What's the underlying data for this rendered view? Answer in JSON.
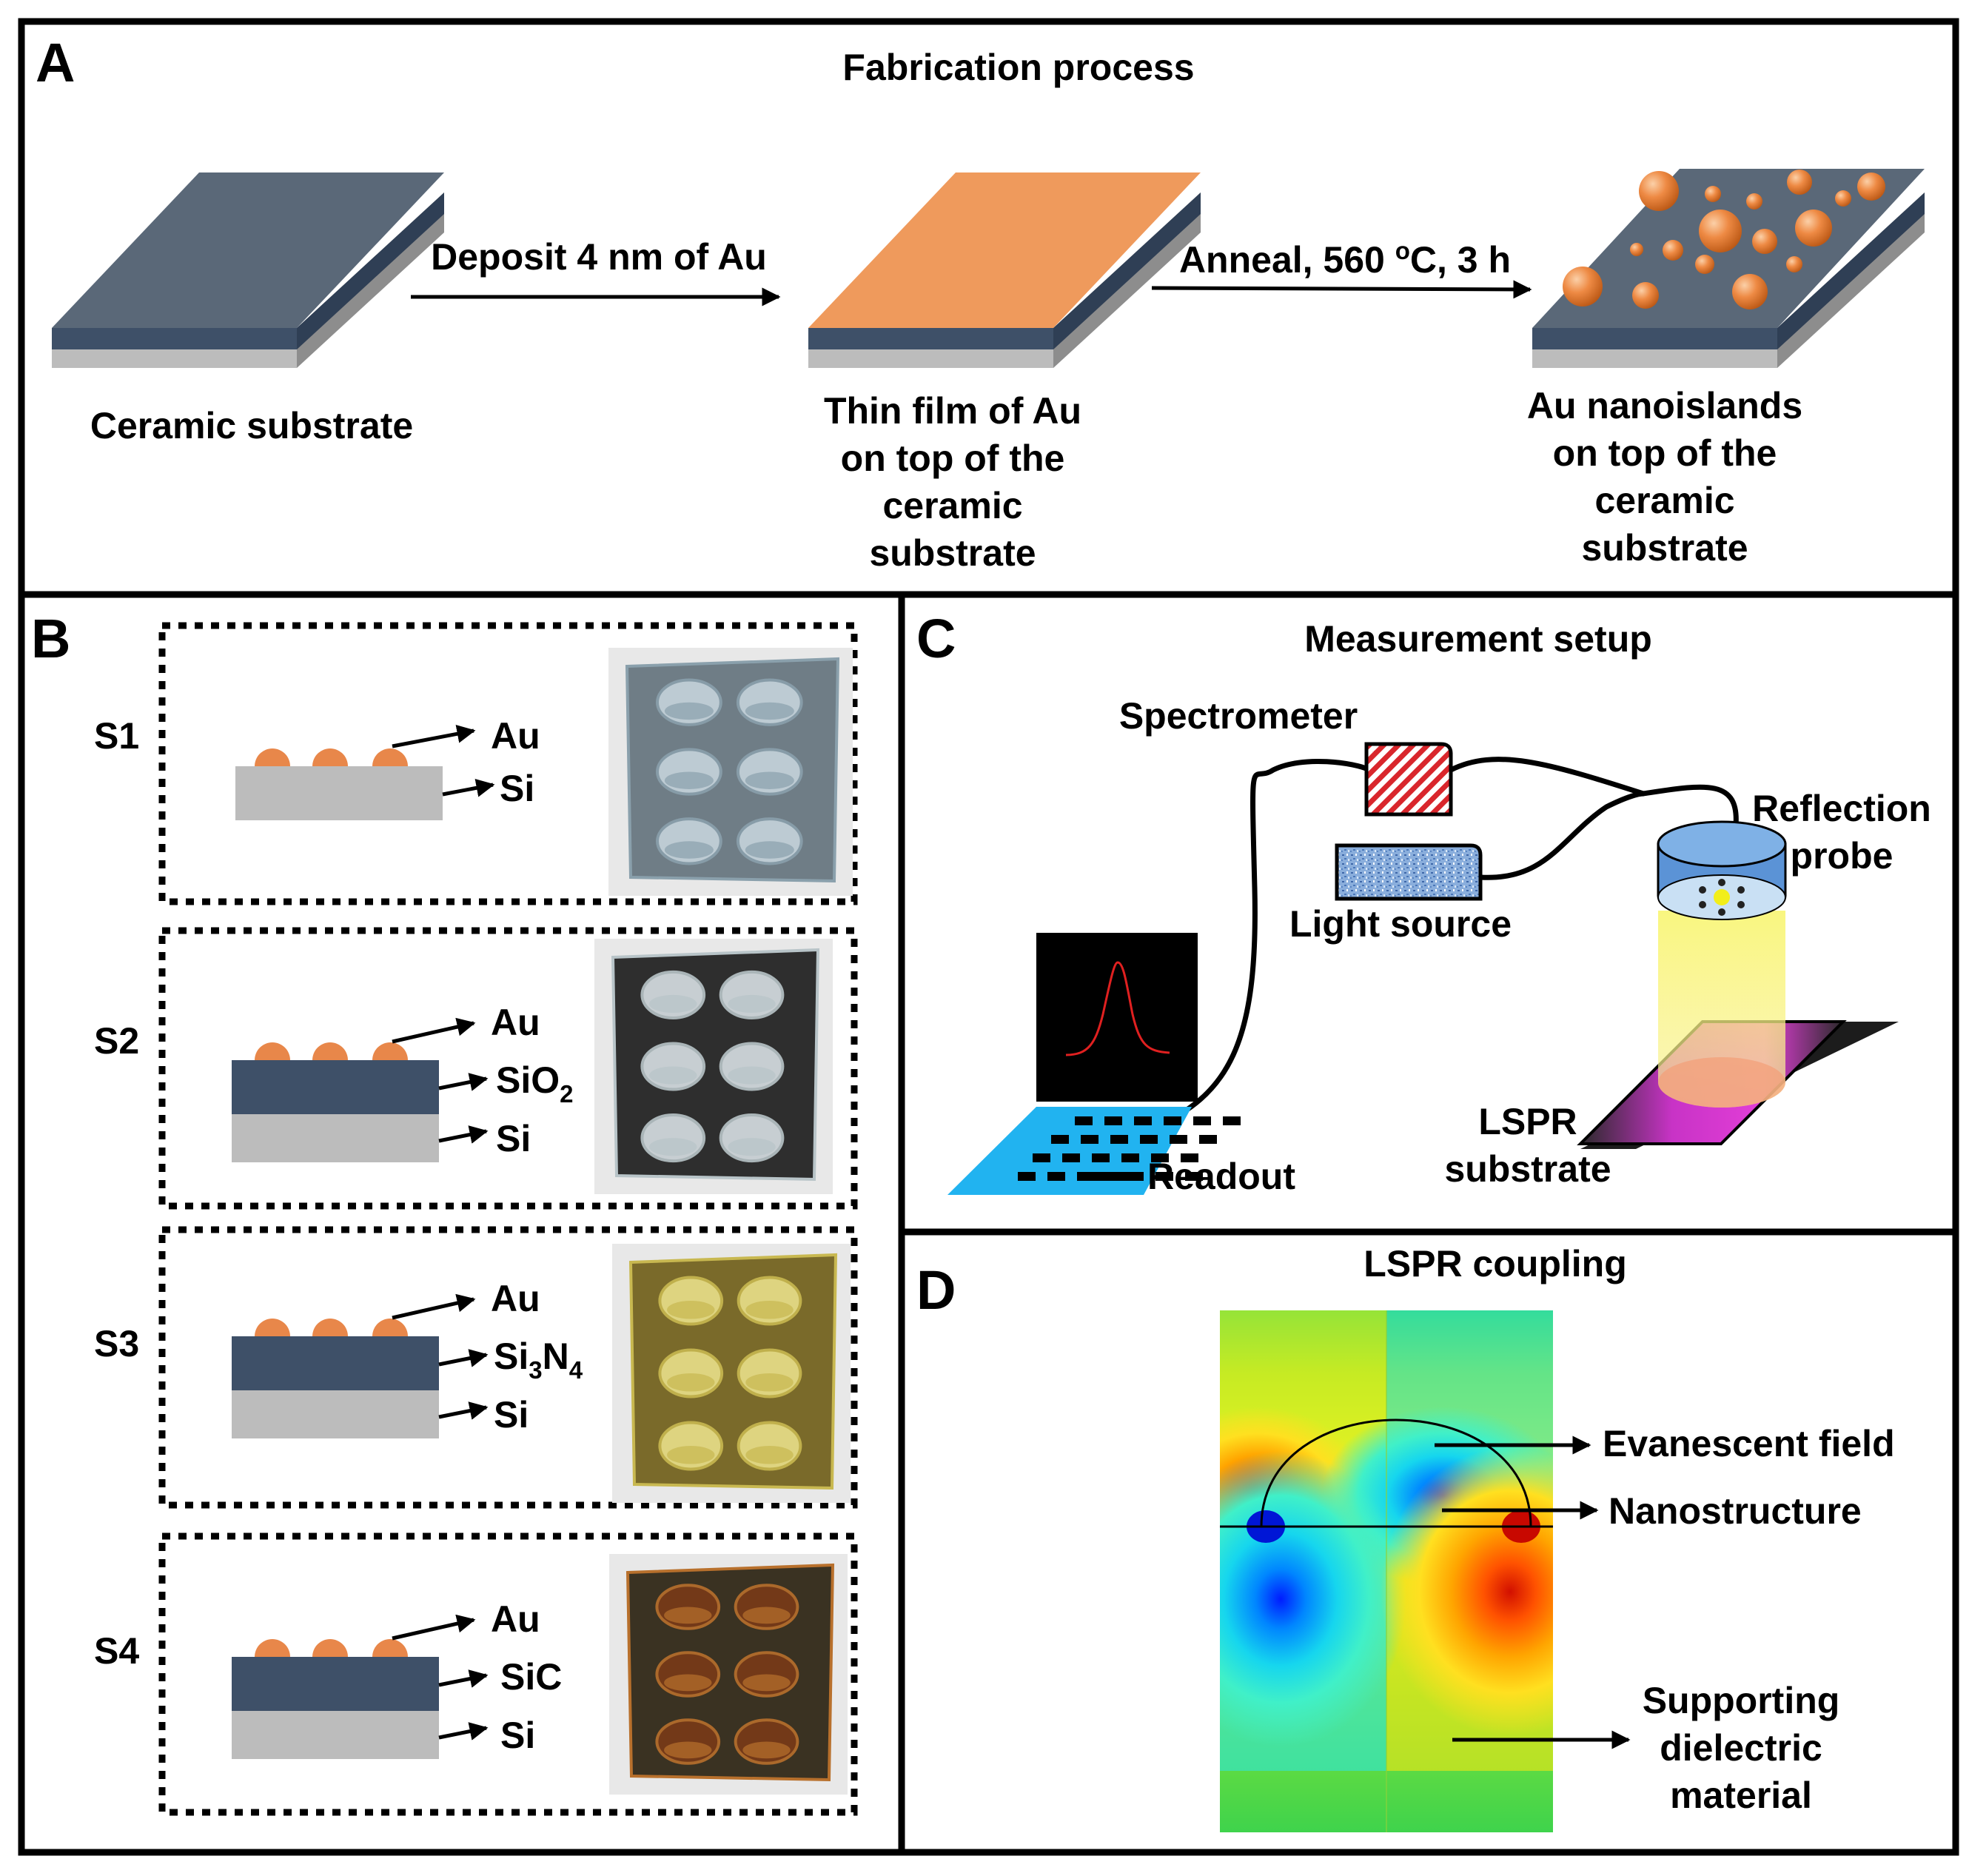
{
  "panel_a": {
    "letter": "A",
    "title": "Fabrication process",
    "step1_label": "Ceramic substrate",
    "arrow1_label": "Deposit 4 nm of Au",
    "step2_label": [
      "Thin film of Au",
      "on top of the",
      "ceramic",
      "substrate"
    ],
    "arrow2_label_pre": "Anneal, 560 ",
    "arrow2_label_sup": "o",
    "arrow2_label_post": "C, 3 h",
    "step3_label": [
      "Au nanoislands",
      "on top of the",
      "ceramic",
      "substrate"
    ]
  },
  "panel_b": {
    "letter": "B",
    "samples": [
      {
        "id": "S1",
        "au": "Au",
        "layers": [
          {
            "text": "Si"
          }
        ]
      },
      {
        "id": "S2",
        "au": "Au",
        "layers": [
          {
            "pre": "SiO",
            "sub1": "2",
            "mid": "",
            "sub2": ""
          },
          {
            "text": "Si"
          }
        ]
      },
      {
        "id": "S3",
        "au": "Au",
        "layers": [
          {
            "pre": "Si",
            "sub1": "3",
            "mid": "N",
            "sub2": "4"
          },
          {
            "text": "Si"
          }
        ]
      },
      {
        "id": "S4",
        "au": "Au",
        "layers": [
          {
            "text": "SiC"
          },
          {
            "text": "Si"
          }
        ]
      }
    ]
  },
  "panel_c": {
    "letter": "C",
    "title": "Measurement setup",
    "spectrometer": "Spectrometer",
    "light_source": "Light source",
    "probe": [
      "Reflection",
      "probe"
    ],
    "readout": "Readout",
    "substrate": [
      "LSPR",
      "substrate"
    ]
  },
  "panel_d": {
    "letter": "D",
    "title": "LSPR coupling",
    "evanescent": "Evanescent field",
    "nanostructure": "Nanostructure",
    "dielectric": [
      "Supporting",
      "dielectric",
      "material"
    ]
  },
  "colors": {
    "slab_top": "#5a6878",
    "slab_mid": "#3e5068",
    "slab_bottom": "#bcbcbc",
    "gold": "#e8874a",
    "gold_film": "#ef9a5c",
    "laptop": "#21b3f0",
    "spectrometer": "#d9262c",
    "light_source": "#7a9fd0",
    "probe": "#5b93d6",
    "beam": "#f8f46a",
    "substrate_glow": "#e33ed8",
    "curve": "#e02020"
  }
}
